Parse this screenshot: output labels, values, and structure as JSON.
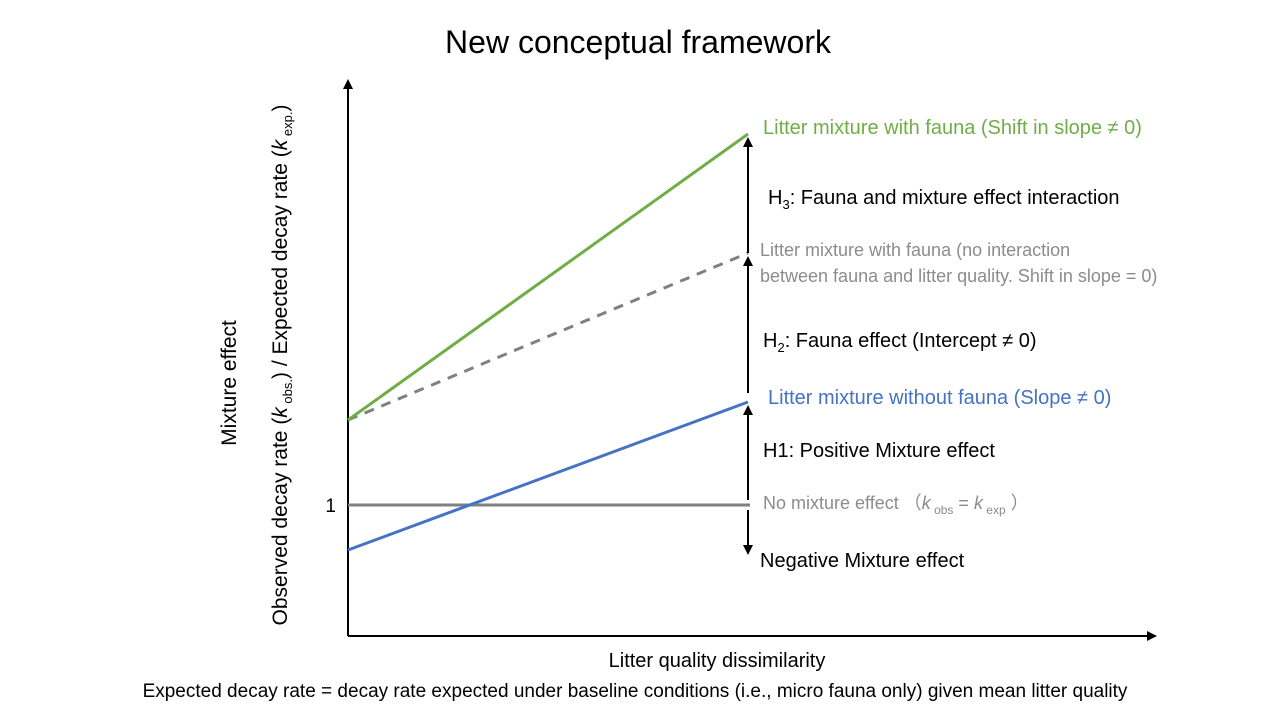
{
  "title": "New conceptual framework",
  "y_axis": {
    "label_line1": "Mixture effect",
    "label_line2_parts": {
      "a": "Observed decay rate (",
      "k": "k",
      "obs_sub": " obs.",
      "b": ") / Expected decay rate (",
      "exp_sub": " exp.",
      "c": ")"
    },
    "tick_one": "1"
  },
  "x_axis": {
    "label": "Litter quality dissimilarity"
  },
  "footnote": "Expected decay rate = decay rate expected under baseline conditions (i.e., micro fauna only) given mean litter quality",
  "colors": {
    "green": "#70AD47",
    "blue": "#4472C4",
    "gray": "#808080",
    "axis": "#000000",
    "gray_text": "#8C8C8C"
  },
  "annotations": {
    "green_line": "Litter mixture with fauna  (Shift in slope ≠ 0)",
    "h3_prefix": "H",
    "h3_sub": "3",
    "h3_rest": ": Fauna and mixture effect interaction",
    "dashed_line_1": "Litter mixture with fauna (no interaction",
    "dashed_line_2": "between fauna and litter quality. Shift in slope = 0)",
    "h2_prefix": "H",
    "h2_sub": "2",
    "h2_rest": ": Fauna effect (Intercept ≠ 0)",
    "blue_line": "Litter mixture without fauna (Slope ≠ 0)",
    "h1": "H1: Positive Mixture effect",
    "no_mix_a": "No mixture effect   （",
    "no_mix_k1": "k",
    "no_mix_obs": " obs",
    "no_mix_eq": " = ",
    "no_mix_k2": "k",
    "no_mix_exp": " exp",
    "no_mix_close": " ）",
    "negative": "Negative Mixture effect"
  }
}
